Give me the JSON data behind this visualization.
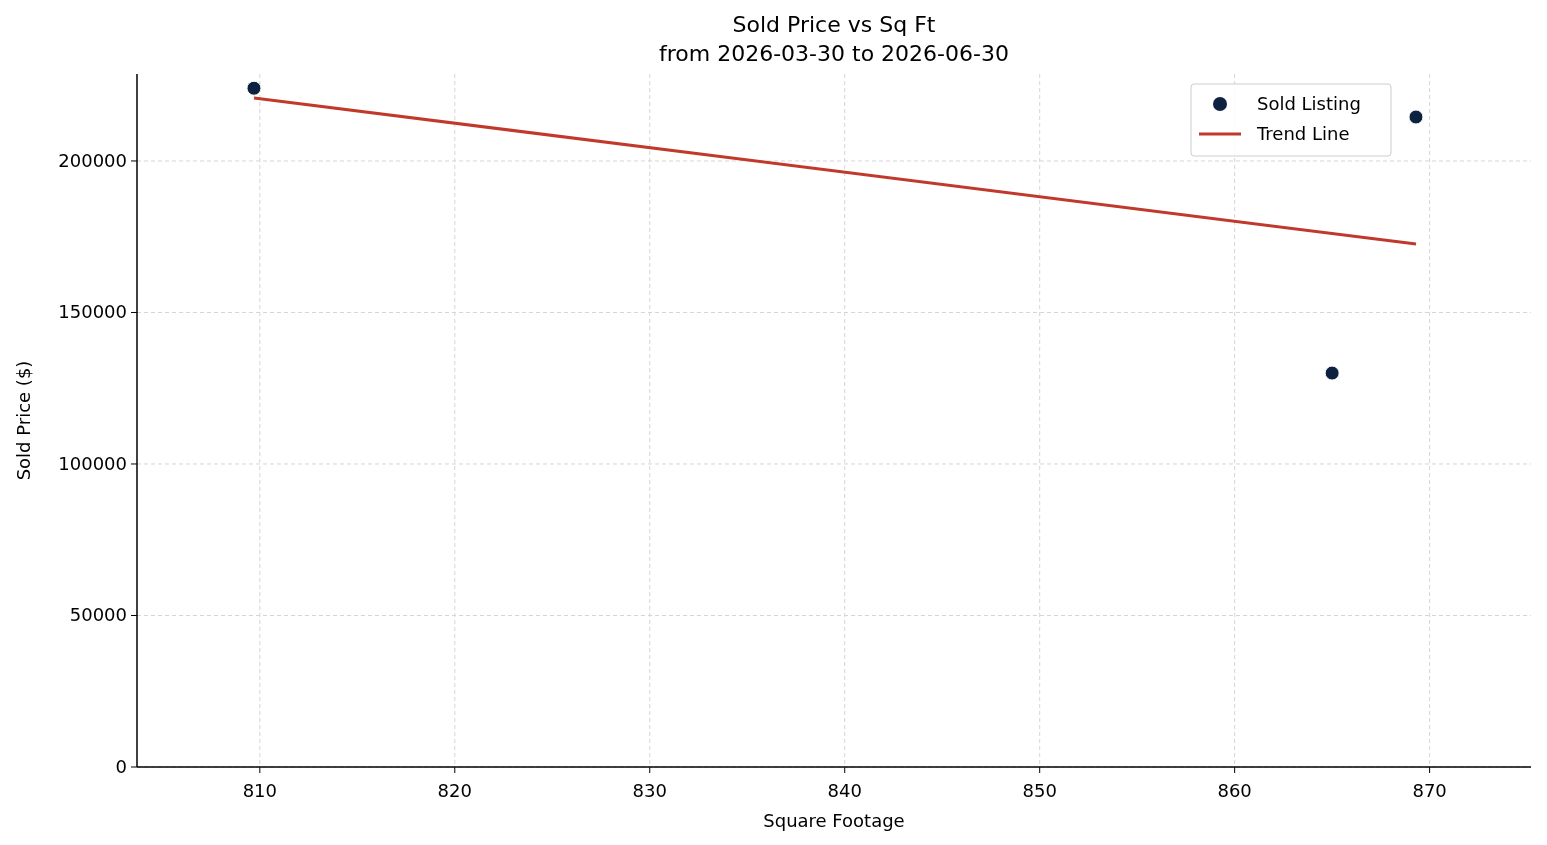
{
  "chart_data": {
    "type": "scatter",
    "title": "Sold Price vs Sq Ft",
    "subtitle": "from 2026-03-30 to 2026-06-30",
    "xlabel": "Square Footage",
    "ylabel": "Sold Price ($)",
    "xlim": [
      803.7,
      875.2
    ],
    "xticks": [
      810,
      820,
      830,
      840,
      850,
      860,
      870
    ],
    "ylim": [
      0,
      228700
    ],
    "yticks": [
      0,
      50000,
      100000,
      150000,
      200000
    ],
    "grid": true,
    "legend": "top right",
    "series": [
      {
        "name": "Sold Listing",
        "marker": "circle",
        "color": "#0d2240",
        "x": [
          809.7,
          865,
          869.3
        ],
        "values": [
          224000,
          130000,
          214500
        ]
      },
      {
        "name": "Trend Line",
        "type": "line",
        "color": "#c0392b",
        "x": [
          809.7,
          869.3
        ],
        "values": [
          220800,
          172600
        ]
      }
    ]
  }
}
